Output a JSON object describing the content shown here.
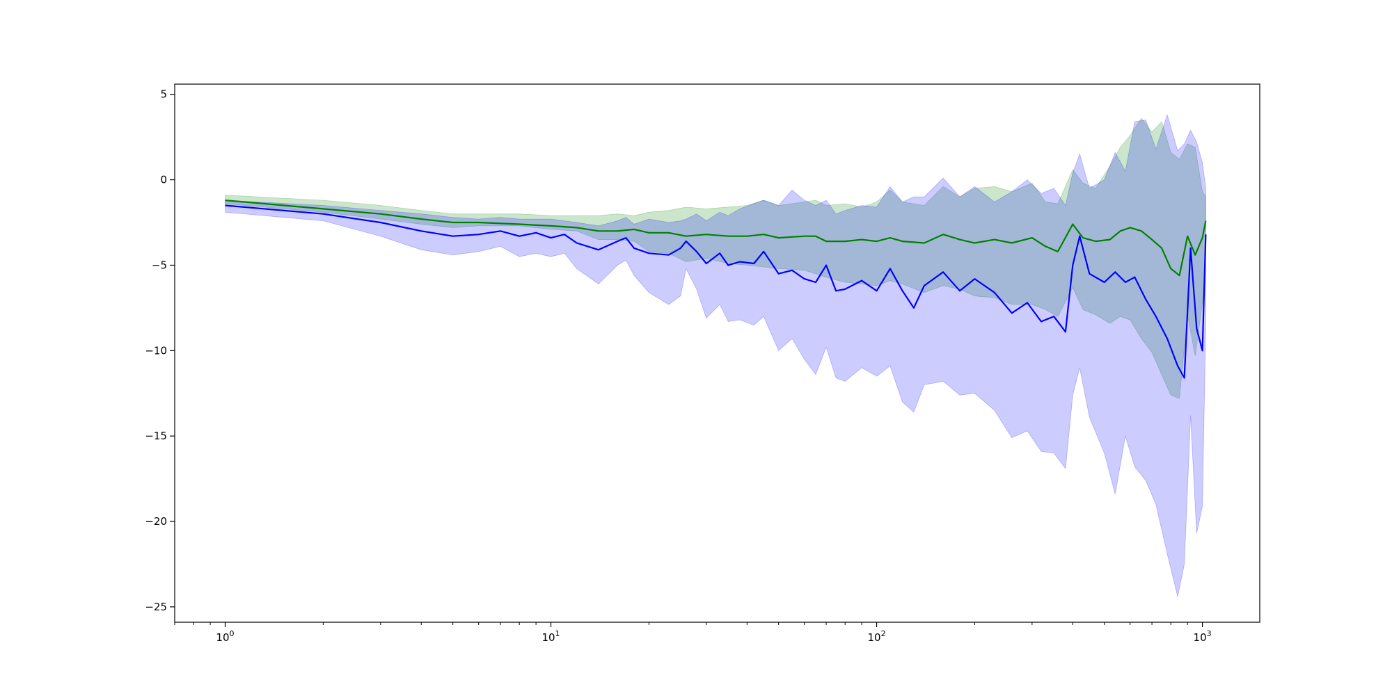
{
  "chart_data": {
    "type": "line",
    "title": "",
    "xlabel": "",
    "ylabel": "",
    "xscale": "log",
    "xlim": [
      0.7,
      1500
    ],
    "ylim": [
      -25.9,
      5.6
    ],
    "grid": false,
    "x_ticks": [
      {
        "value": 1,
        "base": "10",
        "exp": "0"
      },
      {
        "value": 10,
        "base": "10",
        "exp": "1"
      },
      {
        "value": 100,
        "base": "10",
        "exp": "2"
      },
      {
        "value": 1000,
        "base": "10",
        "exp": "3"
      }
    ],
    "y_ticks": [
      {
        "value": 5,
        "label": "5"
      },
      {
        "value": 0,
        "label": "0"
      },
      {
        "value": -5,
        "label": "−5"
      },
      {
        "value": -10,
        "label": "−10"
      },
      {
        "value": -15,
        "label": "−15"
      },
      {
        "value": -20,
        "label": "−20"
      },
      {
        "value": -25,
        "label": "−25"
      }
    ],
    "series": [
      {
        "color": "#008000",
        "band_color": "#008000",
        "band_opacity": 0.2,
        "points": [
          [
            1,
            -1.2,
            -0.9,
            -1.4
          ],
          [
            2,
            -1.7,
            -1.2,
            -1.9
          ],
          [
            3,
            -2.0,
            -1.5,
            -2.3
          ],
          [
            4,
            -2.3,
            -1.8,
            -2.6
          ],
          [
            5,
            -2.5,
            -2.0,
            -2.8
          ],
          [
            6,
            -2.5,
            -2.0,
            -2.7
          ],
          [
            8,
            -2.6,
            -2.0,
            -2.7
          ],
          [
            10,
            -2.7,
            -2.1,
            -2.9
          ],
          [
            12,
            -2.8,
            -2.1,
            -3.0
          ],
          [
            14,
            -3.0,
            -2.1,
            -3.5
          ],
          [
            16,
            -3.0,
            -2.0,
            -3.5
          ],
          [
            18,
            -2.9,
            -2.1,
            -3.6
          ],
          [
            20,
            -3.1,
            -1.9,
            -4.2
          ],
          [
            23,
            -3.1,
            -1.8,
            -4.3
          ],
          [
            26,
            -3.3,
            -1.6,
            -4.8
          ],
          [
            30,
            -3.2,
            -1.7,
            -4.6
          ],
          [
            35,
            -3.3,
            -1.6,
            -4.9
          ],
          [
            40,
            -3.3,
            -1.5,
            -5.0
          ],
          [
            45,
            -3.2,
            -1.2,
            -5.1
          ],
          [
            50,
            -3.4,
            -1.5,
            -5.2
          ],
          [
            60,
            -3.3,
            -1.3,
            -5.3
          ],
          [
            65,
            -3.3,
            -1.2,
            -5.5
          ],
          [
            70,
            -3.6,
            -1.5,
            -5.7
          ],
          [
            80,
            -3.6,
            -1.4,
            -6.0
          ],
          [
            90,
            -3.5,
            -1.6,
            -6.1
          ],
          [
            100,
            -3.6,
            -1.3,
            -6.2
          ],
          [
            110,
            -3.4,
            -0.6,
            -5.9
          ],
          [
            120,
            -3.6,
            -1.3,
            -6.1
          ],
          [
            140,
            -3.7,
            -1.5,
            -6.6
          ],
          [
            160,
            -3.2,
            -0.4,
            -6.2
          ],
          [
            180,
            -3.5,
            -1.0,
            -6.4
          ],
          [
            200,
            -3.7,
            -0.5,
            -6.8
          ],
          [
            230,
            -3.5,
            -0.4,
            -6.9
          ],
          [
            260,
            -3.7,
            -0.7,
            -7.3
          ],
          [
            300,
            -3.4,
            -0.2,
            -7.3
          ],
          [
            330,
            -3.9,
            -1.3,
            -7.6
          ],
          [
            360,
            -4.2,
            -1.4,
            -8.0
          ],
          [
            400,
            -2.6,
            0.6,
            -6.3
          ],
          [
            430,
            -3.4,
            -0.2,
            -7.6
          ],
          [
            470,
            -3.6,
            -0.5,
            -7.9
          ],
          [
            520,
            -3.5,
            0.8,
            -8.4
          ],
          [
            560,
            -3.0,
            1.9,
            -8.0
          ],
          [
            600,
            -2.8,
            2.6,
            -8.2
          ],
          [
            650,
            -3.0,
            3.6,
            -9.3
          ],
          [
            700,
            -3.5,
            2.8,
            -10.1
          ],
          [
            750,
            -4.0,
            3.4,
            -11.4
          ],
          [
            800,
            -5.2,
            1.6,
            -12.6
          ],
          [
            850,
            -5.6,
            1.2,
            -12.8
          ],
          [
            900,
            -3.3,
            2.1,
            -7.9
          ],
          [
            950,
            -4.4,
            1.9,
            -10.3
          ],
          [
            1000,
            -3.4,
            -0.7,
            -7.2
          ],
          [
            1024,
            -2.4,
            -1.0,
            -4.4
          ]
        ]
      },
      {
        "color": "#0000ff",
        "band_color": "#0000ff",
        "band_opacity": 0.2,
        "points": [
          [
            1,
            -1.5,
            -1.2,
            -1.9
          ],
          [
            2,
            -2.0,
            -1.5,
            -2.4
          ],
          [
            3,
            -2.5,
            -1.8,
            -3.3
          ],
          [
            4,
            -3.0,
            -2.0,
            -4.1
          ],
          [
            5,
            -3.3,
            -2.2,
            -4.4
          ],
          [
            6,
            -3.2,
            -2.3,
            -4.2
          ],
          [
            7,
            -3.0,
            -2.2,
            -3.9
          ],
          [
            8,
            -3.3,
            -2.3,
            -4.5
          ],
          [
            9,
            -3.1,
            -2.3,
            -4.3
          ],
          [
            10,
            -3.4,
            -2.3,
            -4.5
          ],
          [
            11,
            -3.2,
            -2.4,
            -4.3
          ],
          [
            12,
            -3.7,
            -2.5,
            -5.2
          ],
          [
            14,
            -4.1,
            -2.7,
            -6.1
          ],
          [
            16,
            -3.6,
            -2.4,
            -5.0
          ],
          [
            17,
            -3.4,
            -2.2,
            -4.7
          ],
          [
            18,
            -4.0,
            -2.6,
            -5.6
          ],
          [
            20,
            -4.3,
            -2.3,
            -6.6
          ],
          [
            23,
            -4.4,
            -2.5,
            -7.3
          ],
          [
            25,
            -4.0,
            -2.4,
            -6.8
          ],
          [
            26,
            -3.6,
            -2.3,
            -5.2
          ],
          [
            28,
            -4.2,
            -2.0,
            -6.4
          ],
          [
            30,
            -4.9,
            -2.4,
            -8.1
          ],
          [
            33,
            -4.3,
            -1.9,
            -7.3
          ],
          [
            35,
            -5.0,
            -2.1,
            -8.3
          ],
          [
            38,
            -4.8,
            -1.7,
            -8.2
          ],
          [
            42,
            -4.9,
            -1.4,
            -8.5
          ],
          [
            45,
            -4.2,
            -1.2,
            -8.0
          ],
          [
            50,
            -5.5,
            -1.5,
            -10.0
          ],
          [
            55,
            -5.3,
            -0.6,
            -9.3
          ],
          [
            60,
            -5.8,
            -1.2,
            -10.5
          ],
          [
            65,
            -6.0,
            -1.5,
            -11.4
          ],
          [
            70,
            -5.0,
            -1.2,
            -9.8
          ],
          [
            75,
            -6.5,
            -2.0,
            -11.6
          ],
          [
            80,
            -6.4,
            -1.8,
            -11.8
          ],
          [
            90,
            -5.9,
            -1.5,
            -11.0
          ],
          [
            100,
            -6.5,
            -1.6,
            -11.5
          ],
          [
            110,
            -5.2,
            -0.4,
            -10.9
          ],
          [
            120,
            -6.5,
            -1.3,
            -13.0
          ],
          [
            130,
            -7.5,
            -1.0,
            -13.6
          ],
          [
            140,
            -6.2,
            -1.0,
            -12.0
          ],
          [
            160,
            -5.4,
            0.1,
            -11.8
          ],
          [
            180,
            -6.5,
            -1.0,
            -12.6
          ],
          [
            200,
            -5.8,
            -0.4,
            -12.5
          ],
          [
            230,
            -6.6,
            -1.3,
            -13.5
          ],
          [
            260,
            -7.8,
            -0.7,
            -15.1
          ],
          [
            290,
            -7.2,
            0.0,
            -14.7
          ],
          [
            320,
            -8.3,
            -0.8,
            -15.9
          ],
          [
            350,
            -8.0,
            -0.5,
            -16.0
          ],
          [
            380,
            -8.9,
            -1.5,
            -16.9
          ],
          [
            400,
            -5.0,
            0.4,
            -12.6
          ],
          [
            420,
            -3.3,
            1.5,
            -11.0
          ],
          [
            450,
            -5.5,
            -0.5,
            -13.9
          ],
          [
            500,
            -6.0,
            0.0,
            -16.0
          ],
          [
            540,
            -5.4,
            1.6,
            -18.4
          ],
          [
            580,
            -6.0,
            0.5,
            -15.0
          ],
          [
            620,
            -5.7,
            3.4,
            -16.8
          ],
          [
            670,
            -7.0,
            3.5,
            -17.6
          ],
          [
            720,
            -8.0,
            1.8,
            -19.0
          ],
          [
            780,
            -9.3,
            3.8,
            -21.9
          ],
          [
            840,
            -10.9,
            1.7,
            -24.4
          ],
          [
            880,
            -11.6,
            2.1,
            -22.5
          ],
          [
            920,
            -4.0,
            2.9,
            -13.8
          ],
          [
            960,
            -8.7,
            2.2,
            -20.7
          ],
          [
            1000,
            -10.0,
            1.0,
            -19.1
          ],
          [
            1024,
            -3.2,
            -0.5,
            -8.4
          ]
        ]
      }
    ]
  }
}
